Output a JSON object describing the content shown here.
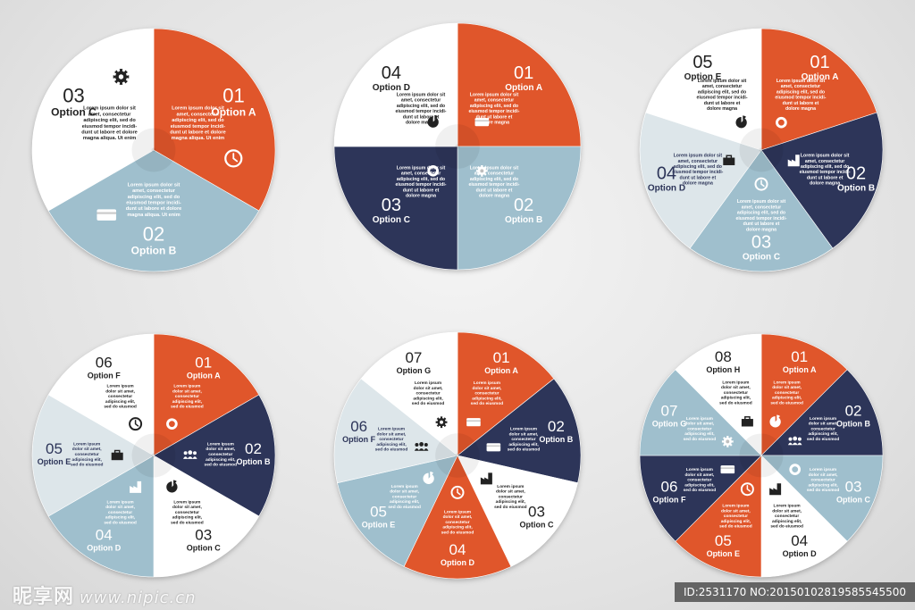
{
  "colors": {
    "orange": "#e0562b",
    "navy": "#2d3559",
    "lightblue": "#9fbfcd",
    "pale": "#dde6ea",
    "white": "#ffffff"
  },
  "lorem": {
    "short": [
      "Lorem ipsum",
      "dolor sit amet,",
      "consectetur",
      "adipiscing elit,",
      "sed do eiusmod"
    ],
    "medium": [
      "Lorem ipsum dolor sit",
      "amet, consectetur",
      "adipiscing elit, sed do",
      "eiusmod tempor incidi-",
      "dunt ut labore et",
      "dolore magna"
    ],
    "long": [
      "Lorem ipsum dolor sit",
      "amet, consectetur",
      "adipiscing elit, sed do",
      "eiusmod tempor incidi-",
      "dunt ut labore et dolore",
      "magna aliqua. Ut enim"
    ]
  },
  "diagrams": [
    {
      "segments": [
        {
          "number": "01",
          "label": "Option A",
          "color": "orange",
          "icon": "clock-icon"
        },
        {
          "number": "02",
          "label": "Option B",
          "color": "lightblue",
          "icon": "card-icon"
        },
        {
          "number": "03",
          "label": "Option C",
          "color": "white",
          "icon": "gear-icon"
        }
      ]
    },
    {
      "segments": [
        {
          "number": "01",
          "label": "Option A",
          "color": "orange",
          "icon": "card-icon"
        },
        {
          "number": "02",
          "label": "Option B",
          "color": "lightblue",
          "icon": "gear-icon"
        },
        {
          "number": "03",
          "label": "Option C",
          "color": "navy",
          "icon": "ring-icon"
        },
        {
          "number": "04",
          "label": "Option D",
          "color": "white",
          "icon": "pie-icon"
        }
      ]
    },
    {
      "segments": [
        {
          "number": "01",
          "label": "Option A",
          "color": "orange",
          "icon": "ring-icon"
        },
        {
          "number": "02",
          "label": "Option B",
          "color": "navy",
          "icon": "factory-icon"
        },
        {
          "number": "03",
          "label": "Option C",
          "color": "lightblue",
          "icon": "clock-icon"
        },
        {
          "number": "04",
          "label": "Option D",
          "color": "pale",
          "icon": "briefcase-icon"
        },
        {
          "number": "05",
          "label": "Option E",
          "color": "white",
          "icon": "pie-icon"
        }
      ]
    },
    {
      "segments": [
        {
          "number": "01",
          "label": "Option A",
          "color": "orange",
          "icon": "ring-icon"
        },
        {
          "number": "02",
          "label": "Option B",
          "color": "navy",
          "icon": "people-icon"
        },
        {
          "number": "03",
          "label": "Option C",
          "color": "white",
          "icon": "pie-icon"
        },
        {
          "number": "04",
          "label": "Option D",
          "color": "lightblue",
          "icon": "factory-icon"
        },
        {
          "number": "05",
          "label": "Option E",
          "color": "pale",
          "icon": "briefcase-icon"
        },
        {
          "number": "06",
          "label": "Option F",
          "color": "white",
          "icon": "clock-icon"
        }
      ]
    },
    {
      "segments": [
        {
          "number": "01",
          "label": "Option A",
          "color": "orange",
          "icon": "card-icon"
        },
        {
          "number": "02",
          "label": "Option B",
          "color": "navy",
          "icon": "card-icon"
        },
        {
          "number": "03",
          "label": "Option C",
          "color": "white",
          "icon": "factory-icon"
        },
        {
          "number": "04",
          "label": "Option D",
          "color": "orange",
          "icon": "clock-icon"
        },
        {
          "number": "05",
          "label": "Option E",
          "color": "lightblue",
          "icon": "pie-icon"
        },
        {
          "number": "06",
          "label": "Option F",
          "color": "pale",
          "icon": "people-icon"
        },
        {
          "number": "07",
          "label": "Option G",
          "color": "white",
          "icon": "gear-icon"
        }
      ]
    },
    {
      "segments": [
        {
          "number": "01",
          "label": "Option A",
          "color": "orange",
          "icon": "pie-icon"
        },
        {
          "number": "02",
          "label": "Option B",
          "color": "navy",
          "icon": "people-icon"
        },
        {
          "number": "03",
          "label": "Option C",
          "color": "lightblue",
          "icon": "ring-icon"
        },
        {
          "number": "04",
          "label": "Option D",
          "color": "white",
          "icon": "factory-icon"
        },
        {
          "number": "05",
          "label": "Option E",
          "color": "orange",
          "icon": "clock-icon"
        },
        {
          "number": "06",
          "label": "Option F",
          "color": "navy",
          "icon": "card-icon"
        },
        {
          "number": "07",
          "label": "Option G",
          "color": "lightblue",
          "icon": "gear-icon"
        },
        {
          "number": "08",
          "label": "Option H",
          "color": "white",
          "icon": "briefcase-icon"
        }
      ]
    }
  ],
  "watermark": {
    "brand": "昵享网",
    "url": "www.nipic.cn",
    "id_text": "ID:2531170 NO:20150102819585545500"
  }
}
